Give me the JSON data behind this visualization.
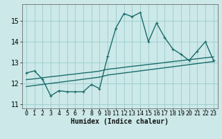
{
  "xlabel": "Humidex (Indice chaleur)",
  "bg_color": "#cce8e8",
  "grid_color": "#99cccc",
  "line_color": "#1a6b6b",
  "xlim": [
    -0.5,
    23.5
  ],
  "ylim": [
    10.8,
    15.8
  ],
  "xticks": [
    0,
    1,
    2,
    3,
    4,
    5,
    6,
    7,
    8,
    9,
    10,
    11,
    12,
    13,
    14,
    15,
    16,
    17,
    18,
    19,
    20,
    21,
    22,
    23
  ],
  "yticks": [
    11,
    12,
    13,
    14,
    15
  ],
  "line1_x": [
    0,
    1,
    2,
    3,
    4,
    5,
    6,
    7,
    8,
    9,
    10,
    11,
    12,
    13,
    14,
    15,
    16,
    17,
    18,
    19,
    20,
    21,
    22,
    23
  ],
  "line1_y": [
    12.5,
    12.6,
    12.2,
    11.4,
    11.65,
    11.6,
    11.6,
    11.6,
    11.95,
    11.75,
    13.3,
    14.65,
    15.35,
    15.2,
    15.4,
    14.0,
    14.9,
    14.2,
    13.65,
    13.4,
    13.1,
    13.55,
    14.0,
    13.1
  ],
  "line2_x": [
    0,
    1,
    2,
    3,
    4,
    5,
    6,
    7,
    8,
    9,
    10,
    11,
    12,
    13,
    14,
    15,
    16,
    17,
    18,
    19,
    20,
    21,
    22,
    23
  ],
  "line2_y": [
    12.18,
    12.22,
    12.27,
    12.32,
    12.36,
    12.41,
    12.45,
    12.5,
    12.54,
    12.59,
    12.68,
    12.72,
    12.77,
    12.82,
    12.86,
    12.91,
    12.95,
    13.0,
    13.05,
    13.09,
    13.14,
    13.18,
    13.23,
    13.27
  ],
  "line3_x": [
    0,
    1,
    2,
    3,
    4,
    5,
    6,
    7,
    8,
    9,
    10,
    11,
    12,
    13,
    14,
    15,
    16,
    17,
    18,
    19,
    20,
    21,
    22,
    23
  ],
  "line3_y": [
    11.85,
    11.9,
    11.95,
    12.0,
    12.05,
    12.1,
    12.15,
    12.2,
    12.25,
    12.3,
    12.4,
    12.45,
    12.5,
    12.55,
    12.6,
    12.65,
    12.7,
    12.75,
    12.8,
    12.85,
    12.9,
    12.95,
    13.0,
    13.05
  ],
  "line_width": 1.0,
  "font_size_label": 7,
  "font_size_tick": 6
}
